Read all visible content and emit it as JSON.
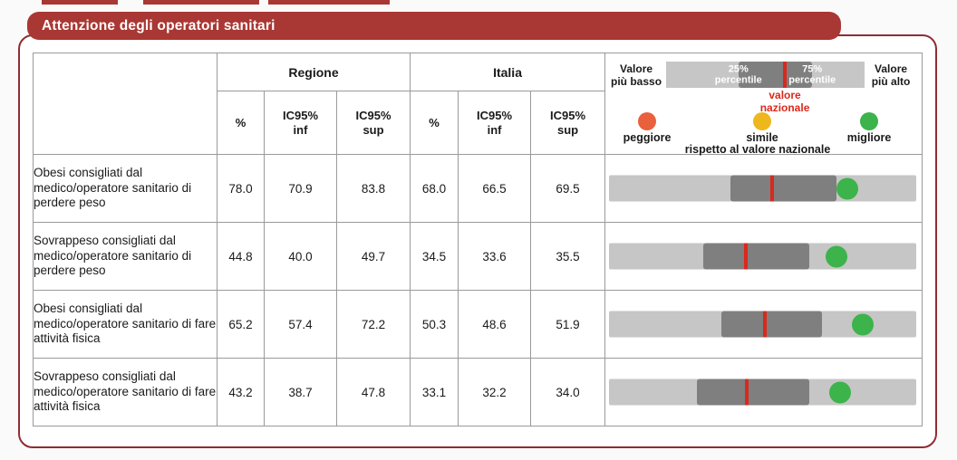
{
  "title": "Attenzione degli operatori sanitari",
  "table": {
    "groups": [
      "Regione",
      "Italia"
    ],
    "sub_headers": [
      "%",
      "IC95%\ninf",
      "IC95%\nsup",
      "%",
      "IC95%\ninf",
      "IC95%\nsup"
    ]
  },
  "legend": {
    "lowest": "Valore\npiù basso",
    "highest": "Valore\npiù alto",
    "p25": "25%\npercentile",
    "p75": "75%\npercentile",
    "national": "valore\nnazionale",
    "worse": "peggiore",
    "similar": "simile",
    "better": "migliore",
    "relative": "rispetto al valore nazionale",
    "bar": {
      "band_start_pct": 36.4,
      "band_end_pct": 73.6,
      "national_pct": 60
    }
  },
  "rows": [
    {
      "label": "Obesi consigliati dal medico/operatore sanitario di perdere peso",
      "values": [
        "78.0",
        "70.9",
        "83.8",
        "68.0",
        "66.5",
        "69.5"
      ],
      "bar": {
        "band_start_pct": 39.5,
        "band_end_pct": 74.0,
        "national_pct": 53.2,
        "dot_pct": 77.5
      },
      "status": "migliore"
    },
    {
      "label": "Sovrappeso consigliati dal medico/operatore sanitario di perdere peso",
      "values": [
        "44.8",
        "40.0",
        "49.7",
        "34.5",
        "33.6",
        "35.5"
      ],
      "bar": {
        "band_start_pct": 30.7,
        "band_end_pct": 65.2,
        "national_pct": 44.4,
        "dot_pct": 74.0
      },
      "status": "migliore"
    },
    {
      "label": "Obesi consigliati dal medico/operatore sanitario di fare attività fisica",
      "values": [
        "65.2",
        "57.4",
        "72.2",
        "50.3",
        "48.6",
        "51.9"
      ],
      "bar": {
        "band_start_pct": 36.5,
        "band_end_pct": 69.3,
        "national_pct": 50.6,
        "dot_pct": 82.7
      },
      "status": "migliore"
    },
    {
      "label": "Sovrappeso consigliati dal medico/operatore sanitario di fare attività fisica",
      "values": [
        "43.2",
        "38.7",
        "47.8",
        "33.1",
        "32.2",
        "34.0"
      ],
      "bar": {
        "band_start_pct": 28.7,
        "band_end_pct": 65.2,
        "national_pct": 44.7,
        "dot_pct": 75.1
      },
      "status": "migliore"
    }
  ],
  "colors": {
    "brick_red": "#a93733",
    "border_red": "#8f2d33",
    "bright_red": "#da291c",
    "track_gray": "#c6c6c6",
    "band_gray": "#7f7f7f",
    "green": "#3cb34b",
    "orange": "#e9603c",
    "yellow": "#eeb71e"
  },
  "chart_data": {
    "type": "table",
    "title": "Attenzione degli operatori sanitari",
    "columns": [
      "Regione %",
      "Regione IC95% inf",
      "Regione IC95% sup",
      "Italia %",
      "Italia IC95% inf",
      "Italia IC95% sup"
    ],
    "rows": [
      "Obesi consigliati dal medico/operatore sanitario di perdere peso",
      "Sovrappeso consigliati dal medico/operatore sanitario di perdere peso",
      "Obesi consigliati dal medico/operatore sanitario di fare attività fisica",
      "Sovrappeso consigliati dal medico/operatore sanitario di fare attività fisica"
    ],
    "values": [
      [
        78.0,
        70.9,
        83.8,
        68.0,
        66.5,
        69.5
      ],
      [
        44.8,
        40.0,
        49.7,
        34.5,
        33.6,
        35.5
      ],
      [
        65.2,
        57.4,
        72.2,
        50.3,
        48.6,
        51.9
      ],
      [
        43.2,
        38.7,
        47.8,
        33.1,
        32.2,
        34.0
      ]
    ],
    "region_vs_national": [
      "migliore",
      "migliore",
      "migliore",
      "migliore"
    ],
    "legend_note": "punto verde = migliore, giallo = simile, arancio = peggiore rispetto al valore nazionale; banda grigio scuro = 25°-75° percentile; linea rossa = valore nazionale"
  }
}
